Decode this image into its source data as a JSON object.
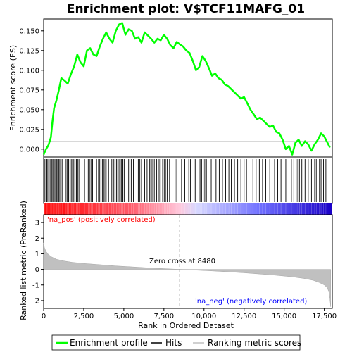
{
  "chart_data": {
    "type": "line",
    "title": "Enrichment plot: V$TCF11MAFG_01",
    "xlabel": "Rank in Ordered Dataset",
    "ylabel_top": "Enrichment score (ES)",
    "ylabel_bottom": "Ranked list metric (PreRanked)",
    "xlim": [
      0,
      18000
    ],
    "x_ticks": [
      0,
      2500,
      5000,
      7500,
      10000,
      12500,
      15000,
      17500
    ],
    "x_tick_labels": [
      "0",
      "2,500",
      "5,000",
      "7,500",
      "10,000",
      "12,500",
      "15,000",
      "17,500"
    ],
    "es_ylim": [
      -0.01,
      0.165
    ],
    "es_ticks": [
      0.0,
      0.025,
      0.05,
      0.075,
      0.1,
      0.125,
      0.15
    ],
    "es_tick_labels": [
      "0.000",
      "0.025",
      "0.050",
      "0.075",
      "0.100",
      "0.125",
      "0.150"
    ],
    "metric_ylim": [
      -2.5,
      3.5
    ],
    "metric_ticks": [
      -2,
      -1,
      0,
      1,
      2,
      3
    ],
    "metric_tick_labels": [
      "-2",
      "-1",
      "0",
      "1",
      "2",
      "3"
    ],
    "series": [
      {
        "name": "Enrichment profile",
        "color": "#00ff00",
        "x": [
          0,
          150,
          300,
          450,
          550,
          650,
          800,
          950,
          1100,
          1300,
          1500,
          1700,
          1900,
          2100,
          2300,
          2500,
          2700,
          2900,
          3100,
          3300,
          3500,
          3700,
          3900,
          4100,
          4300,
          4500,
          4700,
          4900,
          5100,
          5300,
          5500,
          5700,
          5900,
          6100,
          6300,
          6500,
          6700,
          6900,
          7100,
          7300,
          7500,
          7700,
          7900,
          8100,
          8300,
          8480,
          8700,
          8900,
          9100,
          9300,
          9500,
          9700,
          9900,
          10100,
          10300,
          10500,
          10700,
          10900,
          11100,
          11300,
          11500,
          11700,
          11900,
          12100,
          12300,
          12500,
          12700,
          12900,
          13100,
          13300,
          13500,
          13700,
          13900,
          14100,
          14300,
          14500,
          14700,
          14900,
          15100,
          15300,
          15500,
          15700,
          15900,
          16100,
          16300,
          16500,
          16700,
          16900,
          17100,
          17300,
          17500,
          17700,
          17850
        ],
        "y": [
          -0.007,
          0.0,
          0.005,
          0.015,
          0.035,
          0.052,
          0.062,
          0.075,
          0.09,
          0.087,
          0.083,
          0.095,
          0.105,
          0.12,
          0.11,
          0.105,
          0.125,
          0.128,
          0.12,
          0.118,
          0.13,
          0.14,
          0.148,
          0.14,
          0.135,
          0.15,
          0.158,
          0.16,
          0.145,
          0.152,
          0.15,
          0.14,
          0.142,
          0.135,
          0.148,
          0.144,
          0.14,
          0.135,
          0.14,
          0.138,
          0.145,
          0.14,
          0.132,
          0.128,
          0.136,
          0.133,
          0.13,
          0.125,
          0.122,
          0.112,
          0.1,
          0.104,
          0.118,
          0.112,
          0.103,
          0.093,
          0.096,
          0.09,
          0.088,
          0.082,
          0.08,
          0.076,
          0.072,
          0.068,
          0.064,
          0.066,
          0.058,
          0.05,
          0.044,
          0.038,
          0.04,
          0.036,
          0.032,
          0.028,
          0.03,
          0.022,
          0.02,
          0.012,
          0.0,
          0.004,
          -0.007,
          0.008,
          0.012,
          0.004,
          0.01,
          0.006,
          -0.002,
          0.006,
          0.012,
          0.02,
          0.016,
          0.008,
          0.002
        ]
      },
      {
        "name": "Hits",
        "color": "#000000",
        "positions": [
          80,
          200,
          260,
          330,
          400,
          470,
          520,
          580,
          640,
          700,
          760,
          820,
          880,
          950,
          1010,
          1080,
          1150,
          1400,
          1480,
          1560,
          1640,
          1720,
          1800,
          1880,
          1960,
          2040,
          2120,
          2200,
          2550,
          2700,
          2780,
          2860,
          2950,
          3050,
          3300,
          3420,
          3500,
          3580,
          3660,
          3740,
          3820,
          3900,
          4050,
          4250,
          4380,
          4460,
          4540,
          4620,
          4700,
          4780,
          4860,
          4940,
          5020,
          5200,
          5300,
          5380,
          5460,
          5600,
          5900,
          6000,
          6100,
          6300,
          6450,
          6600,
          6680,
          6760,
          6900,
          7050,
          7200,
          7300,
          7420,
          7520,
          7600,
          7700,
          7850,
          8200,
          8300,
          8600,
          8800,
          9050,
          9150,
          9450,
          9750,
          9850,
          9950,
          10050,
          10150,
          10450,
          10750,
          10950,
          11150,
          11350,
          11550,
          11700,
          11900,
          12100,
          12300,
          12500,
          12650,
          13050,
          13250,
          13450,
          13650,
          13850,
          14100,
          14400,
          14600,
          14800,
          15100,
          15300,
          15450,
          15600,
          15750,
          15850,
          15950,
          16100,
          16300,
          16500,
          16700,
          16900,
          17000,
          17100,
          17200,
          17300,
          17450,
          17600,
          17800
        ]
      },
      {
        "name": "Ranking metric scores",
        "color": "#c0c0c0",
        "x": [
          0,
          50,
          150,
          300,
          500,
          800,
          1200,
          1800,
          2500,
          3500,
          4500,
          5500,
          6500,
          7500,
          8480,
          9500,
          10500,
          11500,
          12500,
          13500,
          14500,
          15500,
          16200,
          16800,
          17200,
          17500,
          17700,
          17800,
          17850,
          17900
        ],
        "y": [
          1.7,
          1.4,
          1.15,
          0.95,
          0.8,
          0.65,
          0.55,
          0.45,
          0.38,
          0.3,
          0.22,
          0.16,
          0.1,
          0.05,
          0.0,
          -0.05,
          -0.1,
          -0.16,
          -0.22,
          -0.3,
          -0.38,
          -0.48,
          -0.58,
          -0.7,
          -0.85,
          -1.0,
          -1.2,
          -1.5,
          -1.9,
          -2.4
        ]
      }
    ],
    "annotations": {
      "na_pos": "'na_pos' (positively correlated)",
      "na_neg": "'na_neg' (negatively correlated)",
      "zero_cross": "Zero cross at 8480",
      "zero_cross_value": 8480
    },
    "legend_placement": "bottom",
    "colors": {
      "es_line": "#00ff00",
      "hit": "#000000",
      "metric": "#c0c0c0",
      "na_pos_text": "#ff0000",
      "na_neg_text": "#0000ff",
      "bar_pos": "#ff0000",
      "bar_neg": "#0000ff"
    }
  }
}
